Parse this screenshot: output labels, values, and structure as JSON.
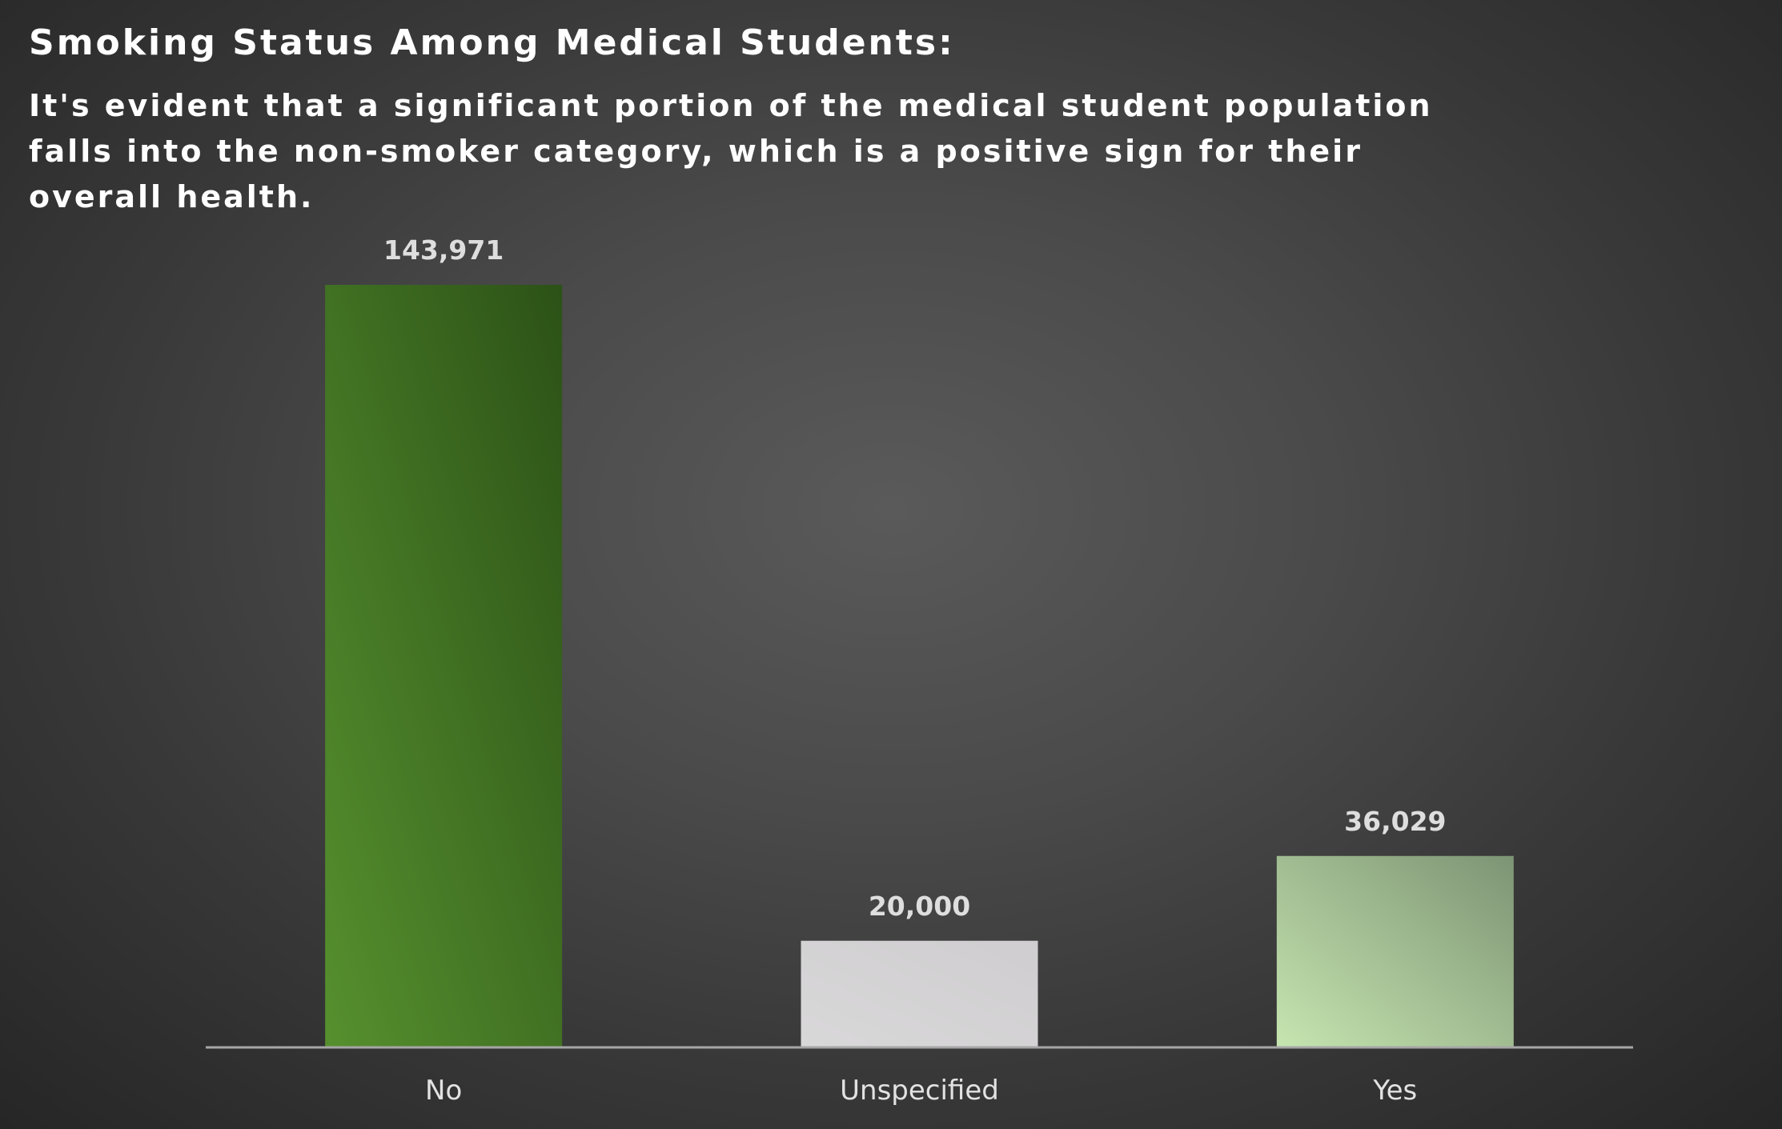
{
  "chart_data": {
    "type": "bar",
    "title": "Smoking Status Among Medical Students:",
    "subtitle": "It's evident that a significant portion of the medical student population falls into the non-smoker category, which is a positive sign for their overall health.",
    "categories": [
      "No",
      "Unspecified",
      "Yes"
    ],
    "values": [
      143971,
      20000,
      36029
    ],
    "value_labels": [
      "143,971",
      "20,000",
      "36,029"
    ],
    "xlabel": "",
    "ylabel": "",
    "ylim": [
      0,
      160000
    ],
    "grid": false,
    "legend": "none",
    "colors": {
      "No": [
        "#56902e",
        "#2c5217"
      ],
      "Unspecified": [
        "#d9d8d9",
        "#cfcdcf"
      ],
      "Yes": [
        "#c6e5b0",
        "#7d9474"
      ],
      "axis": "#a6a6a6"
    }
  }
}
